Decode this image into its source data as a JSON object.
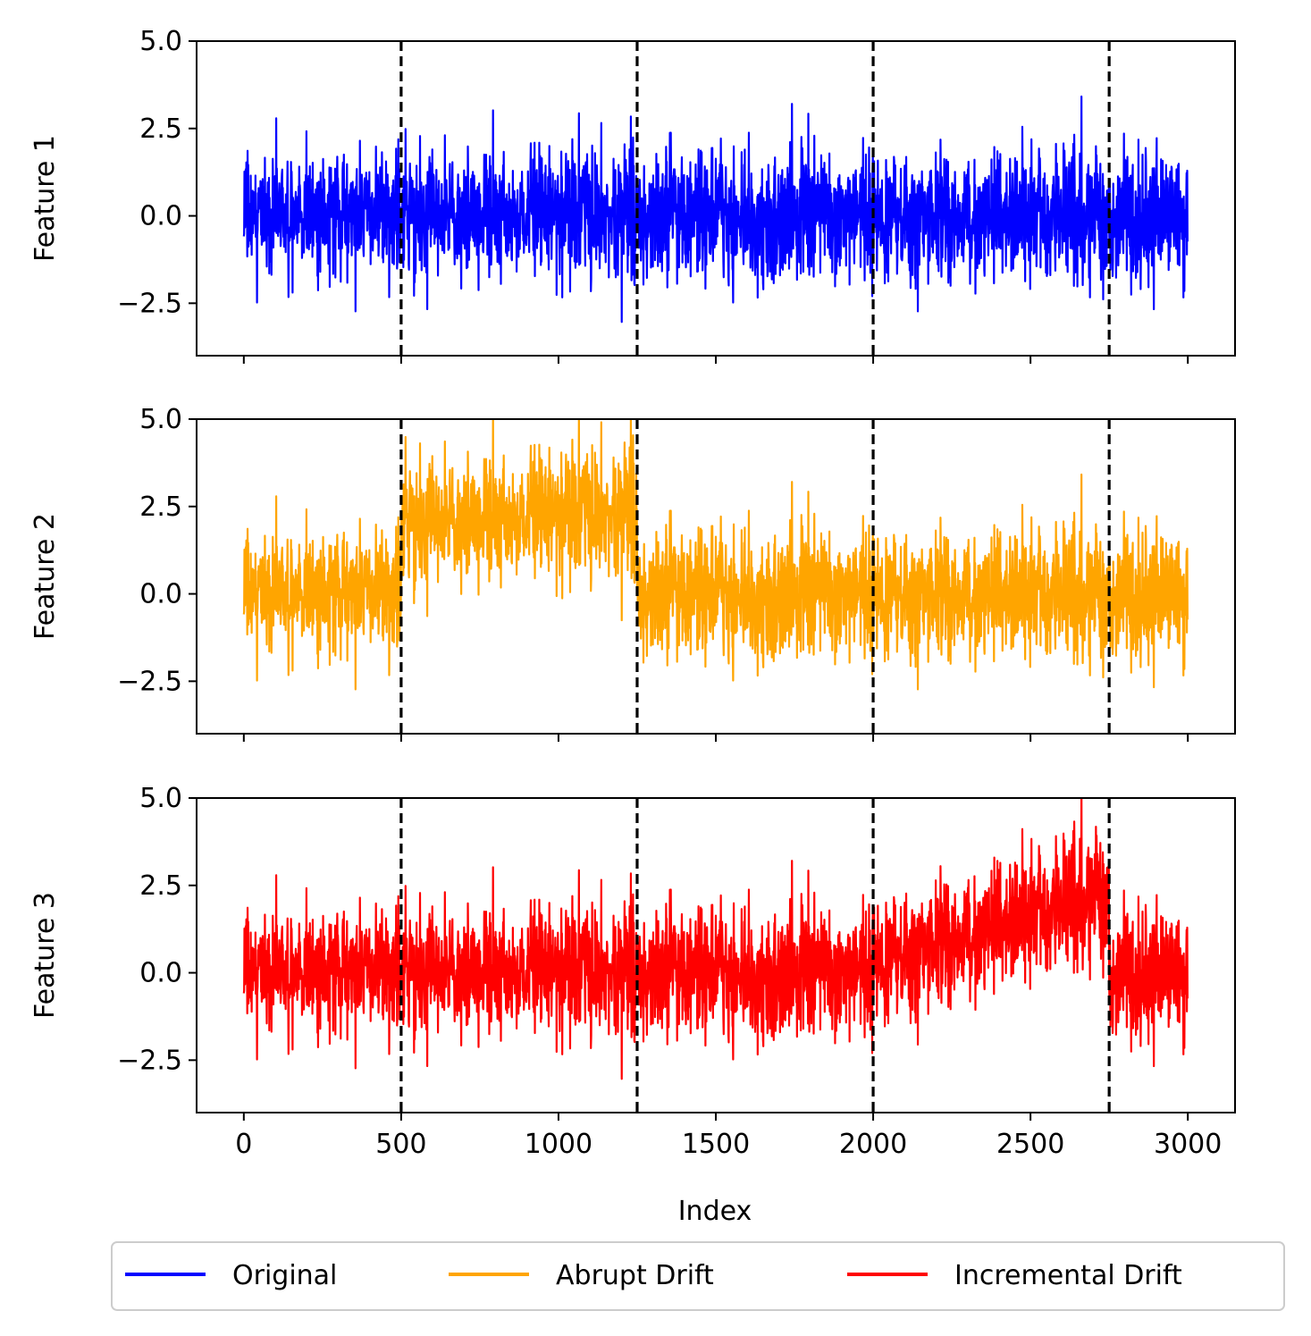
{
  "chart_data": {
    "type": "line",
    "subplots": [
      {
        "ylabel": "Feature 1",
        "series_index": 0,
        "drift": "none"
      },
      {
        "ylabel": "Feature 2",
        "series_index": 1,
        "drift": "abrupt",
        "drift_start": 500,
        "drift_end": 1250,
        "drift_mean": [
          2.0,
          2.3
        ]
      },
      {
        "ylabel": "Feature 3",
        "series_index": 2,
        "drift": "incremental",
        "drift_start": 2000,
        "drift_end": 2750,
        "drift_mean": [
          0.3,
          2.3
        ]
      }
    ],
    "xlabel": "Index",
    "xlim": [
      -150,
      3150
    ],
    "ylim": [
      -4.0,
      5.0
    ],
    "x_ticks": [
      0,
      500,
      1000,
      1500,
      2000,
      2500,
      3000
    ],
    "y_ticks": [
      -2.5,
      0.0,
      2.5,
      5.0
    ],
    "x_tick_labels": [
      "0",
      "500",
      "1000",
      "1500",
      "2000",
      "2500",
      "3000"
    ],
    "y_tick_labels": [
      "−2.5",
      "0.0",
      "2.5",
      "5.0"
    ],
    "vlines": [
      500,
      1250,
      2000,
      2750
    ],
    "n_points": 3000,
    "base_noise": {
      "mean": 0.0,
      "std": 0.9,
      "min": -3.2,
      "max": 3.95
    },
    "series": [
      {
        "name": "Original",
        "color": "#0000ff"
      },
      {
        "name": "Abrupt Drift",
        "color": "#ffa500"
      },
      {
        "name": "Incremental Drift",
        "color": "#ff0000"
      }
    ],
    "legend": {
      "placement": "bottom-center",
      "columns": 3
    },
    "grid": false
  }
}
